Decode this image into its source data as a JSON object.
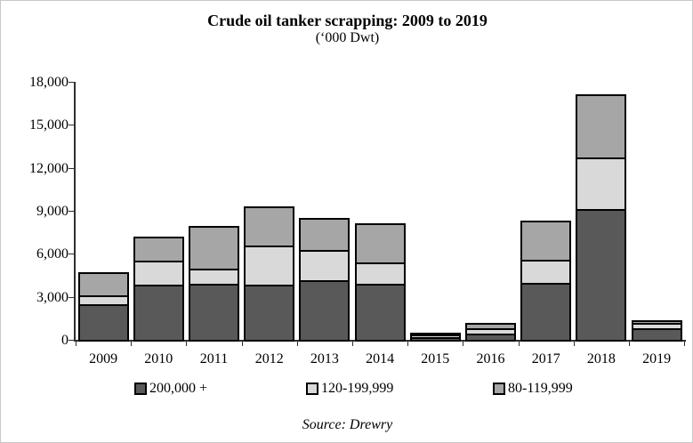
{
  "header": {
    "title": "Crude oil tanker scrapping: 2009 to 2019",
    "subtitle": "(‘000 Dwt)"
  },
  "source": "Source: Drewry",
  "chart_data": {
    "type": "bar",
    "stacked": true,
    "title": "Crude oil tanker scrapping: 2009 to 2019",
    "subtitle": "('000 Dwt)",
    "unit": "'000 Dwt",
    "categories": [
      "2009",
      "2010",
      "2011",
      "2012",
      "2013",
      "2014",
      "2015",
      "2016",
      "2017",
      "2018",
      "2019"
    ],
    "series": [
      {
        "name": "200,000 +",
        "color": "#595959",
        "values": [
          2550,
          3900,
          3950,
          3900,
          4200,
          3950,
          250,
          420,
          4000,
          9200,
          900
        ]
      },
      {
        "name": "120-199,999",
        "color": "#d9d9d9",
        "values": [
          550,
          1650,
          1000,
          2700,
          2100,
          1450,
          130,
          380,
          1600,
          3550,
          350
        ]
      },
      {
        "name": "80-119,999",
        "color": "#a6a6a6",
        "values": [
          1600,
          1650,
          3000,
          2700,
          2200,
          2750,
          120,
          350,
          2700,
          4350,
          100
        ]
      }
    ],
    "totals": [
      4700,
      7200,
      7950,
      9300,
      8500,
      8150,
      500,
      1150,
      8300,
      17100,
      1350
    ],
    "xlabel": "",
    "ylabel": "",
    "ylim": [
      0,
      18000
    ],
    "ytick_step": 3000,
    "ytick_labels": [
      "0",
      "3,000",
      "6,000",
      "9,000",
      "12,000",
      "15,000",
      "18,000"
    ],
    "grid": false,
    "legend_position": "bottom",
    "axis_color": "#2e2e2e",
    "bar_border_color": "#000000"
  }
}
